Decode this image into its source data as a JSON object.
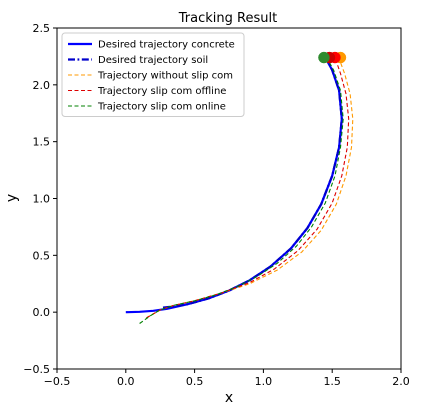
{
  "chart_data": {
    "type": "line",
    "title": "Tracking Result",
    "xlabel": "x",
    "ylabel": "y",
    "xlim": [
      -0.5,
      2.0
    ],
    "ylim": [
      -0.5,
      2.5
    ],
    "xticks": [
      -0.5,
      0.0,
      0.5,
      1.0,
      1.5,
      2.0
    ],
    "yticks": [
      -0.5,
      0.0,
      0.5,
      1.0,
      1.5,
      2.0,
      2.5
    ],
    "xtick_labels": [
      "−0.5",
      "0.0",
      "0.5",
      "1.0",
      "1.5",
      "2.0"
    ],
    "ytick_labels": [
      "−0.5",
      "0.0",
      "0.5",
      "1.0",
      "1.5",
      "2.0",
      "2.5"
    ],
    "grid": false,
    "legend_position": "top-left",
    "series": [
      {
        "name": "Desired trajectory concrete",
        "color": "#0000ff",
        "style": "solid",
        "x": [
          0.0,
          0.1,
          0.2,
          0.3,
          0.45,
          0.6,
          0.75,
          0.9,
          1.05,
          1.2,
          1.32,
          1.42,
          1.5,
          1.55,
          1.57,
          1.55,
          1.5,
          1.45
        ],
        "y": [
          0.0,
          0.003,
          0.012,
          0.03,
          0.07,
          0.12,
          0.19,
          0.28,
          0.4,
          0.56,
          0.74,
          0.95,
          1.2,
          1.45,
          1.7,
          1.95,
          2.13,
          2.24
        ]
      },
      {
        "name": "Desired trajectory soil",
        "color": "#0000cc",
        "style": "dashdot",
        "x": [
          0.27,
          0.35,
          0.45,
          0.6,
          0.75,
          0.9,
          1.05,
          1.2,
          1.32,
          1.42,
          1.5,
          1.55,
          1.57,
          1.55,
          1.5,
          1.46
        ],
        "y": [
          0.04,
          0.05,
          0.07,
          0.12,
          0.19,
          0.28,
          0.4,
          0.56,
          0.74,
          0.95,
          1.2,
          1.45,
          1.7,
          1.95,
          2.13,
          2.24
        ]
      },
      {
        "name": "Trajectory without slip com",
        "color": "#ff9900",
        "style": "dashed",
        "x": [
          0.15,
          0.25,
          0.35,
          0.5,
          0.7,
          0.9,
          1.1,
          1.28,
          1.42,
          1.53,
          1.6,
          1.64,
          1.65,
          1.63,
          1.59,
          1.55
        ],
        "y": [
          -0.05,
          0.02,
          0.06,
          0.1,
          0.17,
          0.25,
          0.37,
          0.53,
          0.72,
          0.95,
          1.2,
          1.45,
          1.7,
          1.92,
          2.1,
          2.23
        ]
      },
      {
        "name": "Trajectory slip com offline",
        "color": "#dd0000",
        "style": "dashed",
        "x": [
          0.15,
          0.25,
          0.35,
          0.5,
          0.7,
          0.9,
          1.08,
          1.25,
          1.39,
          1.5,
          1.57,
          1.61,
          1.62,
          1.6,
          1.56,
          1.52
        ],
        "y": [
          -0.05,
          0.02,
          0.06,
          0.1,
          0.17,
          0.26,
          0.38,
          0.54,
          0.73,
          0.96,
          1.2,
          1.45,
          1.7,
          1.92,
          2.1,
          2.24
        ]
      },
      {
        "name": "Trajectory slip com online",
        "color": "#008000",
        "style": "dashed",
        "x": [
          0.1,
          0.18,
          0.25,
          0.35,
          0.5,
          0.65,
          0.8,
          0.95,
          1.1,
          1.24,
          1.35,
          1.45,
          1.52,
          1.56,
          1.58,
          1.56,
          1.51,
          1.46
        ],
        "y": [
          -0.1,
          -0.03,
          0.02,
          0.06,
          0.1,
          0.15,
          0.22,
          0.31,
          0.43,
          0.58,
          0.75,
          0.96,
          1.2,
          1.45,
          1.7,
          1.95,
          2.13,
          2.24
        ]
      }
    ],
    "end_markers": [
      {
        "x": 1.56,
        "y": 2.24,
        "color": "#ff9900"
      },
      {
        "x": 1.52,
        "y": 2.24,
        "color": "#ff0000"
      },
      {
        "x": 1.48,
        "y": 2.24,
        "color": "#cc0000"
      },
      {
        "x": 1.44,
        "y": 2.24,
        "color": "#2e8b2e"
      }
    ]
  }
}
